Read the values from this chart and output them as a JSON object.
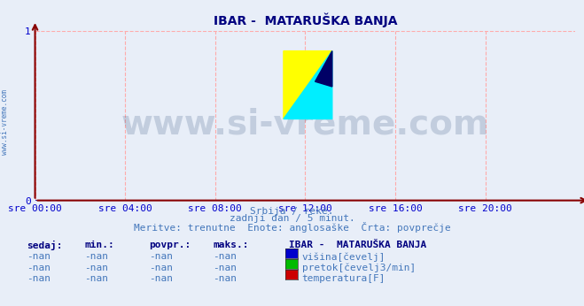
{
  "title": "IBAR -  MATARUŠKA BANJA",
  "title_color": "#000080",
  "title_fontsize": 10,
  "bg_color": "#e8eef8",
  "plot_bg_color": "#e8eef8",
  "grid_color": "#ffaaaa",
  "grid_linestyle": "--",
  "tick_color": "#0000cc",
  "xlim": [
    0,
    288
  ],
  "ylim": [
    0,
    1
  ],
  "yticks": [
    0,
    1
  ],
  "xtick_labels": [
    "sre 00:00",
    "sre 04:00",
    "sre 08:00",
    "sre 12:00",
    "sre 16:00",
    "sre 20:00"
  ],
  "xtick_positions": [
    0,
    48,
    96,
    144,
    192,
    240
  ],
  "subtitle1": "Srbija / reke.",
  "subtitle2": "zadnji dan / 5 minut.",
  "subtitle3": "Meritve: trenutne  Enote: anglosaške  Črta: povprečje",
  "subtitle_color": "#4477bb",
  "subtitle_fontsize": 8,
  "watermark_text": "www.si-vreme.com",
  "watermark_color": "#1a3a6a",
  "watermark_alpha": 0.18,
  "watermark_fontsize": 28,
  "side_text": "www.si-vreme.com",
  "side_text_color": "#4477bb",
  "side_text_fontsize": 5.5,
  "legend_title": "IBAR -  MATARUŠKA BANJA",
  "legend_title_color": "#000080",
  "legend_title_fontsize": 8,
  "legend_items": [
    {
      "label": "višina[čevelj]",
      "color": "#0000cc"
    },
    {
      "label": "pretok[čevelj3/min]",
      "color": "#00bb00"
    },
    {
      "label": "temperatura[F]",
      "color": "#cc0000"
    }
  ],
  "legend_fontsize": 8,
  "table_headers": [
    "sedaj:",
    "min.:",
    "povpr.:",
    "maks.:"
  ],
  "table_values": [
    "-nan",
    "-nan",
    "-nan",
    "-nan"
  ],
  "table_header_color": "#000080",
  "table_value_color": "#4477bb",
  "table_fontsize": 8,
  "arrow_color": "#880000",
  "hline_color": "#0000aa",
  "logo_colors": [
    "#ffff00",
    "#00eeff",
    "#000066"
  ]
}
